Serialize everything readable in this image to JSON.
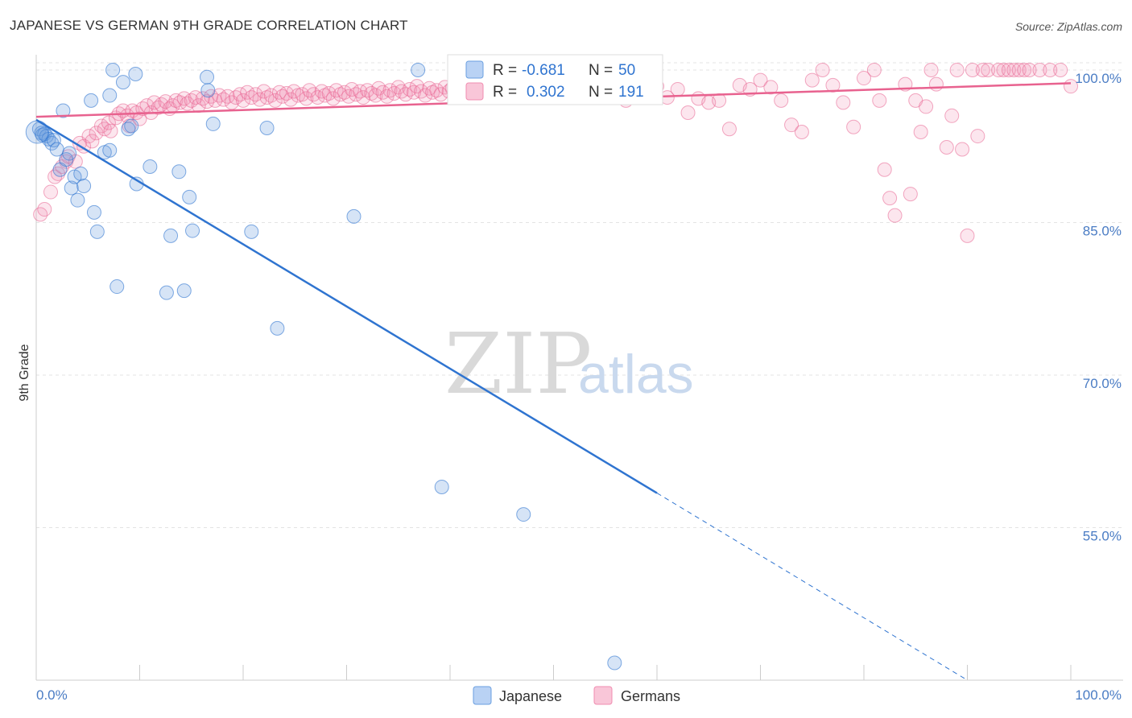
{
  "title": "JAPANESE VS GERMAN 9TH GRADE CORRELATION CHART",
  "source": "Source: ZipAtlas.com",
  "watermark": {
    "zip": "ZIP",
    "atlas": "atlas"
  },
  "colors": {
    "japanese": "#6a9fe0",
    "germans": "#f08cb0",
    "jap_line": "#2f74d0",
    "ger_line": "#e8628f",
    "tick_text": "#4a7cc4"
  },
  "legend": {
    "japanese": {
      "r_label": "R = ",
      "r_value": "-0.681",
      "n_label": "N = ",
      "n_value": "50"
    },
    "germans": {
      "r_label": "R = ",
      "r_value": "0.302",
      "n_label": "N = ",
      "n_value": "191"
    }
  },
  "bottom_legend": {
    "japanese": "Japanese",
    "germans": "Germans"
  },
  "chart_data": {
    "type": "scatter",
    "title": "JAPANESE VS GERMAN 9TH GRADE CORRELATION CHART",
    "xlabel": "",
    "ylabel": "9th Grade",
    "xlim": [
      0,
      100
    ],
    "ylim": [
      40,
      101.5
    ],
    "x_tick_labels": [
      "0.0%",
      "100.0%"
    ],
    "y_ticks": [
      55,
      70,
      85,
      100
    ],
    "y_tick_labels": [
      "55.0%",
      "70.0%",
      "85.0%",
      "100.0%"
    ],
    "grid": true,
    "series": [
      {
        "name": "Japanese",
        "R": -0.681,
        "N": 50,
        "trend": {
          "x0": 0,
          "y0": 95.1,
          "x1": 60,
          "y1": 58.4,
          "dash_to_x": 90,
          "dash_to_y": 40
        },
        "points": [
          [
            0.3,
            94.2
          ],
          [
            0.5,
            93.8
          ],
          [
            0.6,
            93.6
          ],
          [
            0.8,
            93.7
          ],
          [
            1.0,
            93.5
          ],
          [
            1.2,
            93.2
          ],
          [
            1.5,
            92.8
          ],
          [
            1.7,
            93.1
          ],
          [
            2.0,
            92.2
          ],
          [
            2.3,
            90.2
          ],
          [
            2.6,
            96.0
          ],
          [
            2.9,
            91.2
          ],
          [
            3.2,
            91.8
          ],
          [
            3.4,
            88.4
          ],
          [
            3.7,
            89.5
          ],
          [
            4.0,
            87.2
          ],
          [
            4.3,
            89.8
          ],
          [
            4.6,
            88.6
          ],
          [
            5.3,
            97.0
          ],
          [
            5.6,
            86.0
          ],
          [
            5.9,
            84.1
          ],
          [
            6.6,
            91.9
          ],
          [
            7.1,
            92.1
          ],
          [
            7.1,
            97.5
          ],
          [
            7.4,
            100.0
          ],
          [
            7.8,
            78.7
          ],
          [
            8.4,
            98.8
          ],
          [
            8.9,
            94.2
          ],
          [
            9.2,
            94.5
          ],
          [
            9.6,
            99.6
          ],
          [
            9.7,
            88.8
          ],
          [
            11.0,
            90.5
          ],
          [
            12.6,
            78.1
          ],
          [
            13.0,
            83.7
          ],
          [
            13.8,
            90.0
          ],
          [
            14.3,
            78.3
          ],
          [
            14.8,
            87.5
          ],
          [
            15.1,
            84.2
          ],
          [
            16.5,
            99.3
          ],
          [
            16.6,
            98.0
          ],
          [
            17.1,
            94.7
          ],
          [
            20.8,
            84.1
          ],
          [
            22.3,
            94.3
          ],
          [
            23.3,
            74.6
          ],
          [
            30.7,
            85.6
          ],
          [
            36.9,
            100.0
          ],
          [
            39.2,
            59.0
          ],
          [
            47.1,
            56.3
          ],
          [
            55.9,
            41.7
          ],
          [
            0.1,
            93.9
          ]
        ]
      },
      {
        "name": "Germans",
        "R": 0.302,
        "N": 191,
        "trend": {
          "x0": 0,
          "y0": 95.4,
          "x1": 100,
          "y1": 98.7
        },
        "points": [
          [
            0.4,
            85.8
          ],
          [
            0.8,
            86.3
          ],
          [
            1.4,
            88.0
          ],
          [
            1.8,
            89.5
          ],
          [
            2.1,
            89.8
          ],
          [
            2.5,
            90.5
          ],
          [
            2.9,
            91.0
          ],
          [
            3.1,
            91.5
          ],
          [
            3.8,
            91.0
          ],
          [
            4.2,
            92.8
          ],
          [
            4.6,
            92.5
          ],
          [
            5.1,
            93.5
          ],
          [
            5.4,
            93.0
          ],
          [
            5.8,
            93.8
          ],
          [
            6.3,
            94.5
          ],
          [
            6.6,
            94.2
          ],
          [
            7.0,
            94.8
          ],
          [
            7.2,
            94.0
          ],
          [
            7.7,
            95.3
          ],
          [
            8.0,
            95.7
          ],
          [
            8.4,
            96.0
          ],
          [
            8.8,
            95.5
          ],
          [
            9.0,
            94.5
          ],
          [
            9.3,
            96.0
          ],
          [
            9.7,
            95.8
          ],
          [
            10.0,
            95.2
          ],
          [
            10.3,
            96.2
          ],
          [
            10.7,
            96.5
          ],
          [
            11.1,
            95.8
          ],
          [
            11.4,
            96.8
          ],
          [
            11.8,
            96.3
          ],
          [
            12.1,
            96.6
          ],
          [
            12.5,
            96.9
          ],
          [
            12.9,
            96.2
          ],
          [
            13.2,
            96.5
          ],
          [
            13.5,
            97.0
          ],
          [
            13.9,
            96.8
          ],
          [
            14.3,
            97.2
          ],
          [
            14.6,
            96.7
          ],
          [
            15.0,
            97.0
          ],
          [
            15.4,
            97.3
          ],
          [
            15.7,
            96.5
          ],
          [
            16.1,
            97.2
          ],
          [
            16.5,
            96.9
          ],
          [
            16.9,
            97.4
          ],
          [
            17.3,
            97.0
          ],
          [
            17.7,
            97.5
          ],
          [
            18.1,
            97.1
          ],
          [
            18.5,
            97.4
          ],
          [
            18.9,
            96.8
          ],
          [
            19.3,
            97.3
          ],
          [
            19.7,
            97.6
          ],
          [
            20.0,
            97.0
          ],
          [
            20.4,
            97.8
          ],
          [
            20.8,
            97.3
          ],
          [
            21.2,
            97.6
          ],
          [
            21.6,
            97.1
          ],
          [
            22.0,
            97.9
          ],
          [
            22.3,
            97.3
          ],
          [
            22.7,
            97.5
          ],
          [
            23.1,
            97.0
          ],
          [
            23.5,
            97.8
          ],
          [
            23.8,
            97.4
          ],
          [
            24.2,
            97.7
          ],
          [
            24.6,
            97.1
          ],
          [
            24.9,
            97.9
          ],
          [
            25.3,
            97.5
          ],
          [
            25.7,
            97.6
          ],
          [
            26.1,
            97.2
          ],
          [
            26.4,
            98.0
          ],
          [
            26.8,
            97.6
          ],
          [
            27.2,
            97.3
          ],
          [
            27.6,
            97.9
          ],
          [
            27.9,
            97.5
          ],
          [
            28.3,
            97.7
          ],
          [
            28.7,
            97.2
          ],
          [
            29.0,
            98.0
          ],
          [
            29.4,
            97.6
          ],
          [
            29.8,
            97.8
          ],
          [
            30.2,
            97.4
          ],
          [
            30.5,
            98.1
          ],
          [
            30.9,
            97.6
          ],
          [
            31.3,
            97.9
          ],
          [
            31.6,
            97.3
          ],
          [
            32.0,
            98.0
          ],
          [
            32.4,
            97.7
          ],
          [
            32.8,
            97.5
          ],
          [
            33.1,
            98.2
          ],
          [
            33.5,
            97.8
          ],
          [
            33.9,
            97.4
          ],
          [
            34.2,
            98.0
          ],
          [
            34.6,
            97.7
          ],
          [
            35.0,
            98.3
          ],
          [
            35.3,
            97.9
          ],
          [
            35.7,
            97.6
          ],
          [
            36.1,
            98.1
          ],
          [
            36.5,
            97.8
          ],
          [
            36.8,
            98.4
          ],
          [
            37.2,
            97.9
          ],
          [
            37.6,
            97.5
          ],
          [
            38.0,
            98.2
          ],
          [
            38.3,
            97.8
          ],
          [
            38.7,
            98.0
          ],
          [
            39.1,
            97.6
          ],
          [
            39.5,
            98.3
          ],
          [
            39.9,
            97.9
          ],
          [
            40.2,
            98.2
          ],
          [
            40.6,
            97.7
          ],
          [
            41.0,
            98.4
          ],
          [
            41.4,
            98.0
          ],
          [
            41.8,
            97.6
          ],
          [
            42.2,
            98.3
          ],
          [
            42.6,
            97.9
          ],
          [
            43.0,
            98.1
          ],
          [
            43.4,
            97.7
          ],
          [
            43.8,
            98.4
          ],
          [
            44.2,
            98.0
          ],
          [
            44.6,
            97.8
          ],
          [
            45.0,
            98.2
          ],
          [
            45.5,
            97.9
          ],
          [
            46.0,
            98.5
          ],
          [
            46.5,
            98.1
          ],
          [
            47.0,
            97.5
          ],
          [
            47.5,
            98.3
          ],
          [
            48.0,
            98.6
          ],
          [
            48.5,
            97.9
          ],
          [
            49.0,
            98.4
          ],
          [
            49.5,
            97.5
          ],
          [
            50.0,
            98.2
          ],
          [
            51.0,
            98.7
          ],
          [
            52.0,
            97.8
          ],
          [
            53.0,
            98.3
          ],
          [
            54.0,
            97.5
          ],
          [
            55.0,
            98.6
          ],
          [
            56.0,
            98.0
          ],
          [
            57.0,
            97.0
          ],
          [
            58.0,
            98.5
          ],
          [
            59.0,
            97.6
          ],
          [
            60.0,
            98.4
          ],
          [
            61.0,
            97.3
          ],
          [
            62.0,
            98.1
          ],
          [
            63.0,
            95.8
          ],
          [
            64.0,
            97.2
          ],
          [
            65.0,
            96.8
          ],
          [
            66.0,
            97.0
          ],
          [
            67.0,
            94.2
          ],
          [
            68.0,
            98.5
          ],
          [
            69.0,
            98.1
          ],
          [
            70.0,
            99.0
          ],
          [
            71.0,
            98.3
          ],
          [
            72.0,
            97.0
          ],
          [
            73.0,
            94.6
          ],
          [
            74.0,
            93.9
          ],
          [
            75.0,
            99.0
          ],
          [
            76.0,
            100.0
          ],
          [
            77.0,
            98.5
          ],
          [
            78.0,
            96.8
          ],
          [
            79.0,
            94.4
          ],
          [
            80.0,
            99.2
          ],
          [
            81.0,
            100.0
          ],
          [
            81.5,
            97.0
          ],
          [
            82.0,
            90.2
          ],
          [
            82.5,
            87.4
          ],
          [
            83.0,
            85.7
          ],
          [
            84.0,
            98.6
          ],
          [
            84.5,
            87.8
          ],
          [
            85.0,
            97.0
          ],
          [
            85.5,
            93.9
          ],
          [
            86.0,
            96.4
          ],
          [
            86.5,
            100.0
          ],
          [
            87.0,
            98.6
          ],
          [
            88.0,
            92.4
          ],
          [
            88.5,
            95.5
          ],
          [
            89.0,
            100.0
          ],
          [
            89.5,
            92.2
          ],
          [
            90.0,
            83.7
          ],
          [
            90.5,
            100.0
          ],
          [
            91.0,
            93.5
          ],
          [
            91.5,
            100.0
          ],
          [
            92.0,
            100.0
          ],
          [
            93.0,
            100.0
          ],
          [
            93.5,
            100.0
          ],
          [
            94.0,
            100.0
          ],
          [
            94.5,
            100.0
          ],
          [
            95.0,
            100.0
          ],
          [
            95.5,
            100.0
          ],
          [
            96.0,
            100.0
          ],
          [
            97.0,
            100.0
          ],
          [
            98.0,
            100.0
          ],
          [
            99.0,
            100.0
          ],
          [
            100.0,
            98.4
          ]
        ]
      }
    ]
  }
}
